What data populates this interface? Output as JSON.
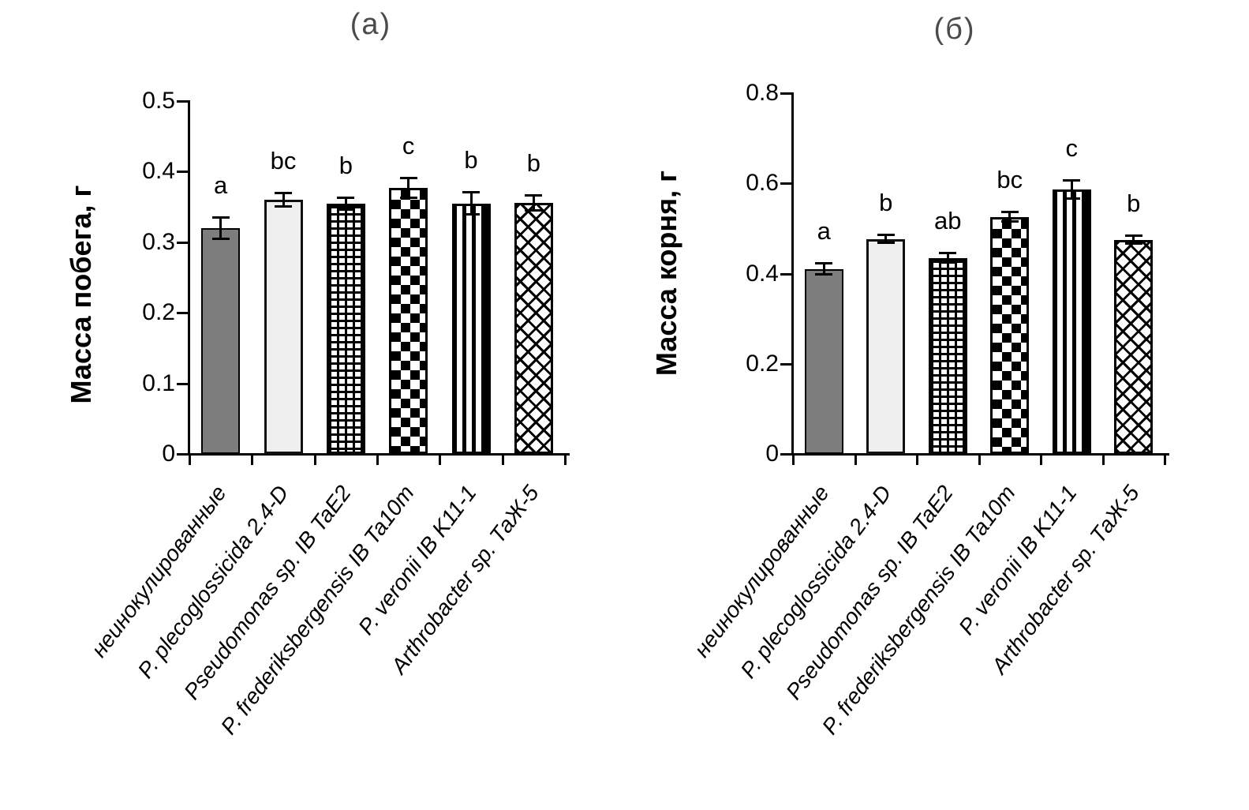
{
  "figure": {
    "description": "Two-panel bar chart figure with significance letters and error bars"
  },
  "styles": {
    "page_bg": "#ffffff",
    "axis_color": "#000000",
    "text_color": "#000000",
    "panel_label_color": "#4b4b4b",
    "gray_bar_fill": "#7d7d7d",
    "light_bar_fill": "#efefef"
  },
  "chart_data": [
    {
      "type": "bar",
      "panel_label": "(а)",
      "title": "",
      "xlabel": "",
      "ylabel": "Масса побега, г",
      "ylim": [
        0,
        0.5
      ],
      "yticks": [
        0,
        0.1,
        0.2,
        0.3,
        0.4,
        0.5
      ],
      "grid": false,
      "legend_position": "none",
      "categories": [
        "неинокулированные",
        "P. plecoglossicida 2.4-D",
        "Pseudomonas sp. IB TaE2",
        "P. frederiksbergensis IB Ta10m",
        "P. veronii IB K11-1",
        "Arthrobacter sp. ТаЖ-5"
      ],
      "values": [
        0.32,
        0.36,
        0.355,
        0.377,
        0.355,
        0.356
      ],
      "errors": [
        0.016,
        0.01,
        0.009,
        0.015,
        0.016,
        0.011
      ],
      "sig_letters": [
        "a",
        "bc",
        "b",
        "c",
        "b",
        "b"
      ],
      "bar_patterns": [
        "solid-gray",
        "solid-light",
        "grid",
        "checker",
        "vertical-stripes",
        "diagonal-crosshatch"
      ]
    },
    {
      "type": "bar",
      "panel_label": "(б)",
      "title": "",
      "xlabel": "",
      "ylabel": "Масса корня, г",
      "ylim": [
        0,
        0.8
      ],
      "yticks": [
        0,
        0.2,
        0.4,
        0.6,
        0.8
      ],
      "grid": false,
      "legend_position": "none",
      "categories": [
        "неинокулированные",
        "P. plecoglossicida 2.4-D",
        "Pseudomonas sp. IB TaE2",
        "P. frederiksbergensis IB Ta10m",
        "P. veronii IB K11-1",
        "Arthrobacter sp. ТаЖ-5"
      ],
      "values": [
        0.41,
        0.477,
        0.435,
        0.526,
        0.587,
        0.475
      ],
      "errors": [
        0.013,
        0.01,
        0.012,
        0.012,
        0.021,
        0.01
      ],
      "sig_letters": [
        "a",
        "b",
        "ab",
        "bc",
        "c",
        "b"
      ],
      "bar_patterns": [
        "solid-gray",
        "solid-light",
        "grid",
        "checker",
        "vertical-stripes",
        "diagonal-crosshatch"
      ]
    }
  ]
}
